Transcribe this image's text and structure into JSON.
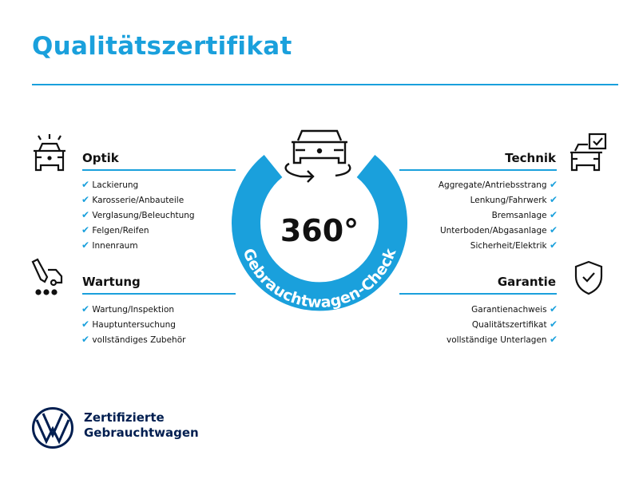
{
  "title": "Qualitätszertifikat",
  "accent_color": "#1aa0dc",
  "check_icon": "check-icon",
  "center": {
    "value": "360°",
    "ring_text": "Gebrauchtwagen-Check"
  },
  "sections": {
    "optik": {
      "title": "Optik",
      "items": [
        "Lackierung",
        "Karosserie/Anbauteile",
        "Verglasung/Beleuchtung",
        "Felgen/Reifen",
        "Innenraum"
      ]
    },
    "wartung": {
      "title": "Wartung",
      "items": [
        "Wartung/Inspektion",
        "Hauptuntersuchung",
        "vollständiges Zubehör"
      ]
    },
    "technik": {
      "title": "Technik",
      "items": [
        "Aggregate/Antriebsstrang",
        "Lenkung/Fahrwerk",
        "Bremsanlage",
        "Unterboden/Abgasanlage",
        "Sicherheit/Elektrik"
      ]
    },
    "garantie": {
      "title": "Garantie",
      "items": [
        "Garantienachweis",
        "Qualitätszertifikat",
        "vollständige Unterlagen"
      ]
    }
  },
  "footer": {
    "line1": "Zertifizierte",
    "line2": "Gebrauchtwagen",
    "logo_color": "#001e50"
  }
}
